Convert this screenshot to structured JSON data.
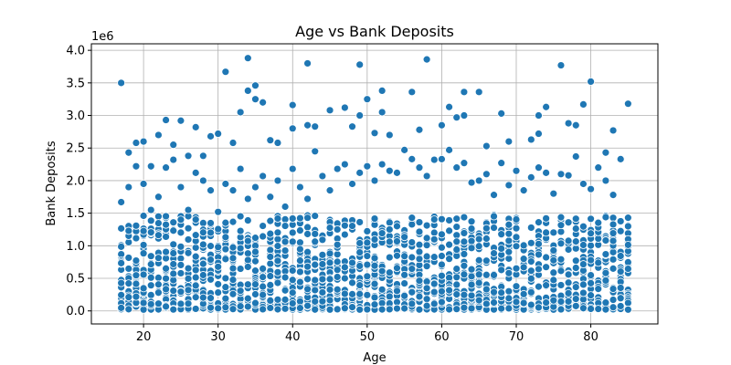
{
  "chart_data": {
    "type": "scatter",
    "title": "Age vs Bank Deposits",
    "xlabel": "Age",
    "ylabel": "Bank Deposits",
    "y_offset_label": "1e6",
    "xlim": [
      13,
      89
    ],
    "ylim": [
      -0.2,
      4.1
    ],
    "xticks": [
      20,
      30,
      40,
      50,
      60,
      70,
      80
    ],
    "xtick_labels": [
      "20",
      "30",
      "40",
      "50",
      "60",
      "70",
      "80"
    ],
    "yticks": [
      0.0,
      0.5,
      1.0,
      1.5,
      2.0,
      2.5,
      3.0,
      3.5,
      4.0
    ],
    "ytick_labels": [
      "0.0",
      "0.5",
      "1.0",
      "1.5",
      "2.0",
      "2.5",
      "3.0",
      "3.5",
      "4.0"
    ],
    "grid": true,
    "marker_color": "#1f77b4",
    "marker_edge_color": "#ffffff",
    "points": [
      [
        17,
        3.5
      ],
      [
        18,
        2.43
      ],
      [
        19,
        2.58
      ],
      [
        20,
        2.6
      ],
      [
        21,
        2.22
      ],
      [
        22,
        2.7
      ],
      [
        23,
        2.93
      ],
      [
        24,
        2.55
      ],
      [
        25,
        2.92
      ],
      [
        26,
        2.38
      ],
      [
        27,
        2.82
      ],
      [
        28,
        2.38
      ],
      [
        29,
        2.68
      ],
      [
        30,
        2.72
      ],
      [
        31,
        3.67
      ],
      [
        32,
        2.58
      ],
      [
        33,
        3.05
      ],
      [
        34,
        3.88
      ],
      [
        34,
        3.38
      ],
      [
        35,
        3.46
      ],
      [
        35,
        3.25
      ],
      [
        36,
        3.2
      ],
      [
        37,
        2.62
      ],
      [
        38,
        2.58
      ],
      [
        40,
        3.16
      ],
      [
        40,
        2.8
      ],
      [
        42,
        3.8
      ],
      [
        42,
        2.85
      ],
      [
        43,
        2.83
      ],
      [
        45,
        3.08
      ],
      [
        47,
        3.12
      ],
      [
        48,
        2.83
      ],
      [
        49,
        3.78
      ],
      [
        49,
        3.0
      ],
      [
        50,
        3.25
      ],
      [
        51,
        2.73
      ],
      [
        52,
        3.38
      ],
      [
        52,
        3.05
      ],
      [
        53,
        2.7
      ],
      [
        56,
        3.36
      ],
      [
        57,
        2.78
      ],
      [
        58,
        3.86
      ],
      [
        60,
        2.85
      ],
      [
        61,
        3.13
      ],
      [
        62,
        2.97
      ],
      [
        63,
        3.36
      ],
      [
        63,
        3.0
      ],
      [
        65,
        3.36
      ],
      [
        66,
        2.53
      ],
      [
        68,
        3.03
      ],
      [
        69,
        2.6
      ],
      [
        72,
        2.63
      ],
      [
        73,
        3.0
      ],
      [
        73,
        2.72
      ],
      [
        74,
        3.13
      ],
      [
        76,
        3.77
      ],
      [
        77,
        2.88
      ],
      [
        78,
        2.85
      ],
      [
        79,
        3.17
      ],
      [
        80,
        3.52
      ],
      [
        82,
        2.43
      ],
      [
        83,
        2.77
      ],
      [
        85,
        3.18
      ],
      [
        17,
        1.67
      ],
      [
        18,
        1.9
      ],
      [
        19,
        2.22
      ],
      [
        20,
        1.95
      ],
      [
        21,
        1.55
      ],
      [
        22,
        1.75
      ],
      [
        23,
        2.2
      ],
      [
        24,
        2.32
      ],
      [
        25,
        1.9
      ],
      [
        26,
        1.55
      ],
      [
        27,
        2.12
      ],
      [
        28,
        2.0
      ],
      [
        29,
        1.85
      ],
      [
        30,
        1.52
      ],
      [
        31,
        1.95
      ],
      [
        32,
        1.85
      ],
      [
        33,
        2.18
      ],
      [
        34,
        1.72
      ],
      [
        35,
        1.9
      ],
      [
        36,
        2.07
      ],
      [
        37,
        1.75
      ],
      [
        38,
        2.0
      ],
      [
        39,
        1.6
      ],
      [
        40,
        2.18
      ],
      [
        41,
        1.9
      ],
      [
        42,
        1.72
      ],
      [
        43,
        2.45
      ],
      [
        44,
        2.07
      ],
      [
        45,
        1.85
      ],
      [
        46,
        2.18
      ],
      [
        47,
        2.25
      ],
      [
        48,
        1.95
      ],
      [
        49,
        2.12
      ],
      [
        50,
        2.22
      ],
      [
        51,
        2.0
      ],
      [
        52,
        2.25
      ],
      [
        53,
        2.15
      ],
      [
        54,
        2.12
      ],
      [
        55,
        2.47
      ],
      [
        56,
        2.33
      ],
      [
        57,
        2.2
      ],
      [
        58,
        2.07
      ],
      [
        59,
        2.32
      ],
      [
        60,
        2.33
      ],
      [
        61,
        2.47
      ],
      [
        62,
        2.2
      ],
      [
        63,
        2.27
      ],
      [
        64,
        1.97
      ],
      [
        65,
        2.0
      ],
      [
        66,
        2.1
      ],
      [
        67,
        1.78
      ],
      [
        68,
        2.27
      ],
      [
        69,
        1.93
      ],
      [
        70,
        2.15
      ],
      [
        71,
        1.85
      ],
      [
        72,
        2.05
      ],
      [
        73,
        2.2
      ],
      [
        74,
        2.12
      ],
      [
        75,
        1.8
      ],
      [
        76,
        2.1
      ],
      [
        77,
        2.08
      ],
      [
        78,
        2.37
      ],
      [
        79,
        1.95
      ],
      [
        80,
        1.87
      ],
      [
        81,
        2.2
      ],
      [
        82,
        2.0
      ],
      [
        83,
        1.78
      ],
      [
        84,
        2.33
      ],
      [
        85,
        1.43
      ]
    ]
  }
}
